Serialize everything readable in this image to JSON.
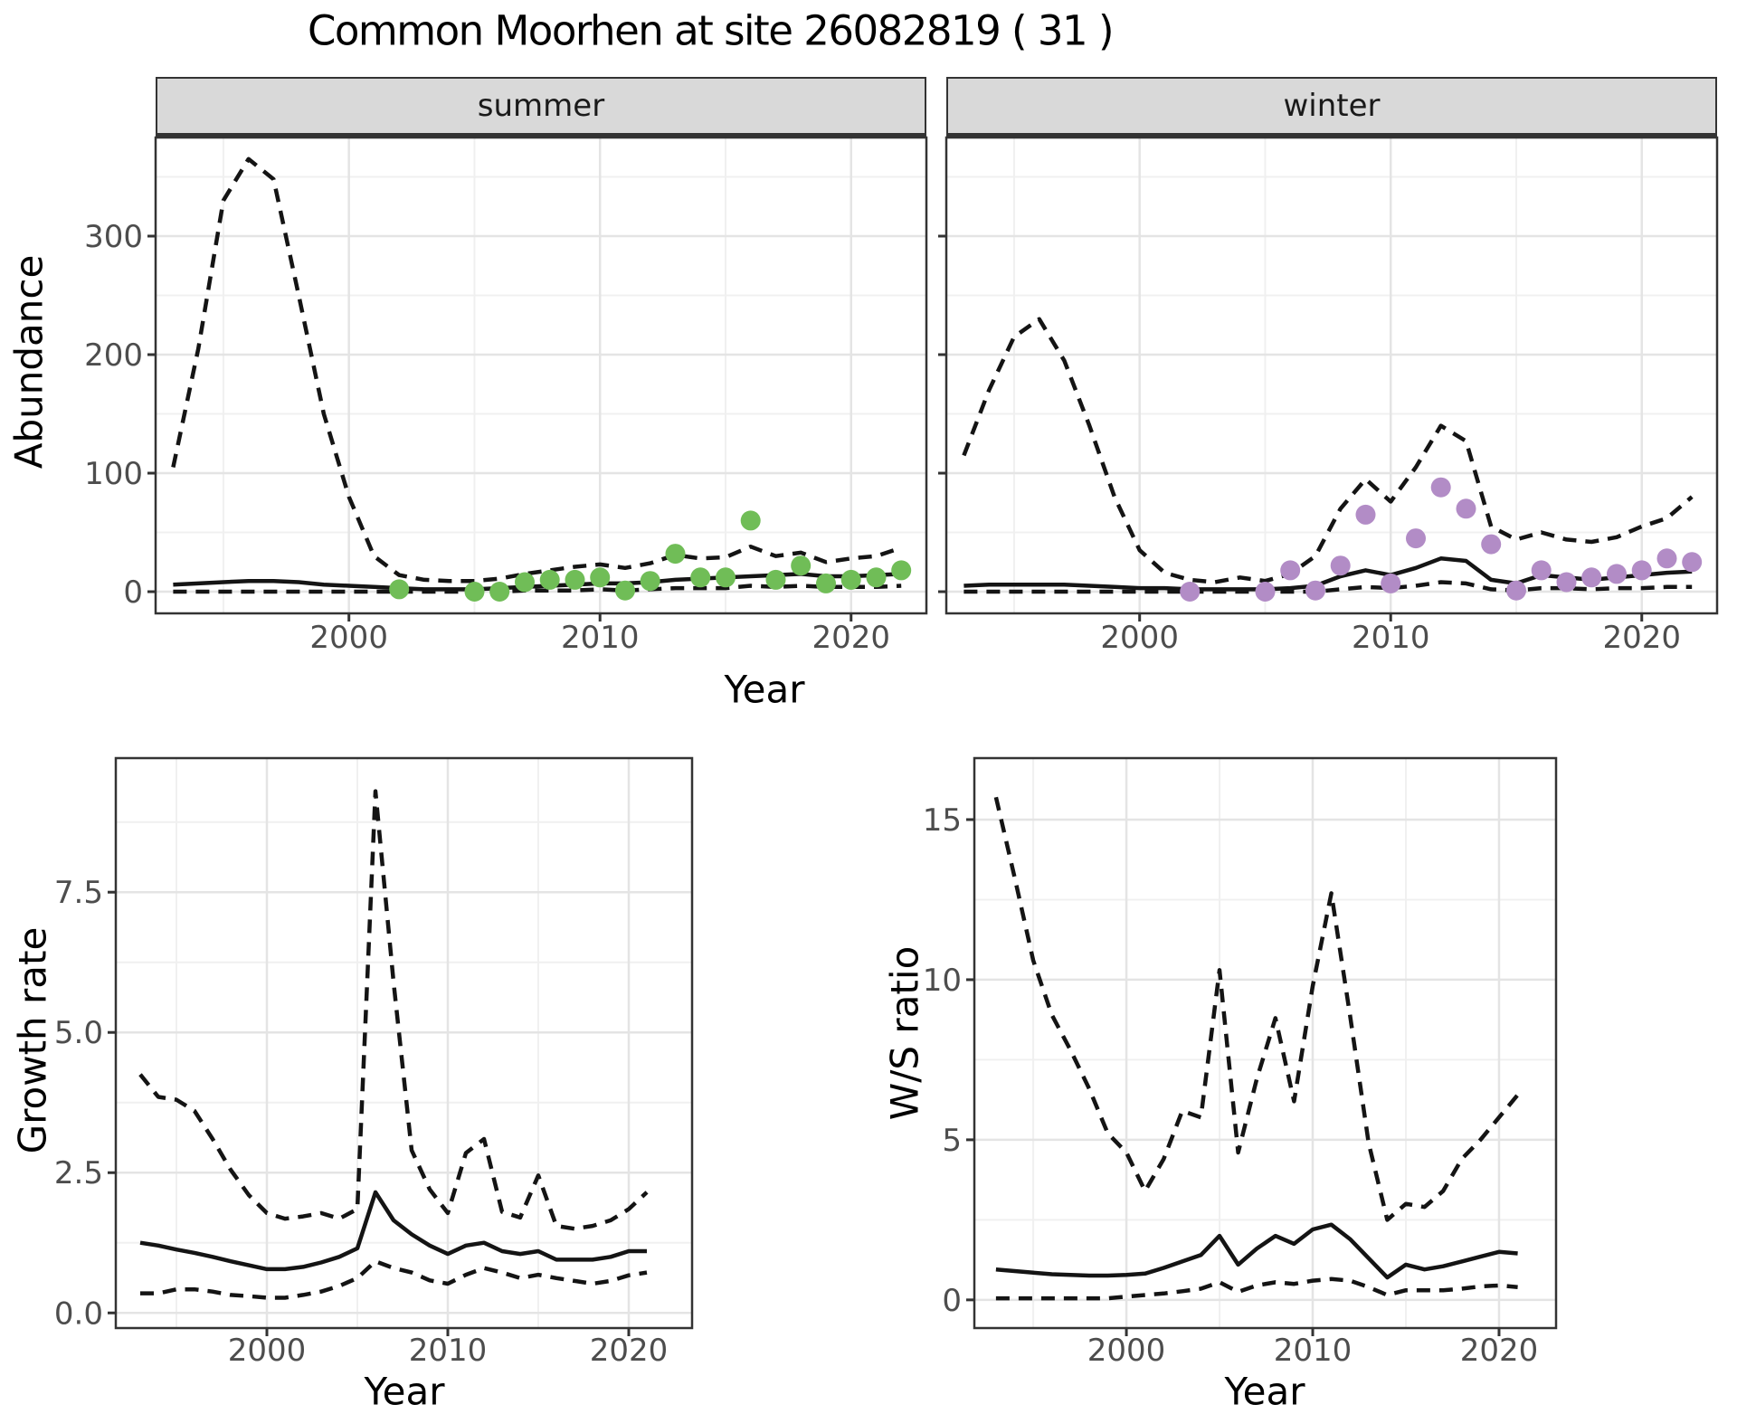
{
  "title": "Common Moorhen at site 26082819 ( 31 )",
  "facet_labels": {
    "summer": "summer",
    "winter": "winter"
  },
  "axis_titles": {
    "abundance": "Abundance",
    "year_top": "Year",
    "growth": "Growth rate",
    "year_growth": "Year",
    "ws": "W/S ratio",
    "year_ws": "Year"
  },
  "colors": {
    "summer_points": "#70bd57",
    "winter_points": "#b28cc6",
    "line": "#141414",
    "grid_major": "#e4e4e4",
    "grid_minor": "#f0f0f0",
    "panel_border": "#333333",
    "strip_fill": "#d9d9d9",
    "tick_text": "#4d4d4d"
  },
  "chart_data": [
    {
      "type": "line",
      "facet": "summer",
      "xlabel": "Year",
      "ylabel": "Abundance",
      "xlim": [
        1992.3,
        2023.0
      ],
      "ylim": [
        -18.3,
        383.2
      ],
      "x_ticks": [
        2000,
        2010,
        2020
      ],
      "x_tick_labels": [
        "2000",
        "2010",
        "2020"
      ],
      "x_minor": [
        1995,
        2005,
        2015
      ],
      "y_ticks": [
        0,
        100,
        200,
        300
      ],
      "y_tick_labels": [
        "0",
        "100",
        "200",
        "300"
      ],
      "y_minor": [
        50,
        150,
        250,
        350
      ],
      "series": [
        {
          "name": "upper_ci",
          "style": "dashed",
          "x": [
            1993,
            1994,
            1995,
            1996,
            1997,
            1998,
            1999,
            2000,
            2001,
            2002,
            2003,
            2004,
            2005,
            2006,
            2007,
            2008,
            2009,
            2010,
            2011,
            2012,
            2013,
            2014,
            2015,
            2016,
            2017,
            2018,
            2019,
            2020,
            2021,
            2022
          ],
          "y": [
            105,
            205,
            330,
            365,
            348,
            250,
            150,
            80,
            30,
            14,
            10,
            9,
            9,
            11,
            15,
            18,
            21,
            23,
            20,
            24,
            31,
            28,
            29,
            38,
            30,
            33,
            25,
            28,
            30,
            37
          ]
        },
        {
          "name": "estimate",
          "style": "solid",
          "x": [
            1993,
            1994,
            1995,
            1996,
            1997,
            1998,
            1999,
            2000,
            2001,
            2002,
            2003,
            2004,
            2005,
            2006,
            2007,
            2008,
            2009,
            2010,
            2011,
            2012,
            2013,
            2014,
            2015,
            2016,
            2017,
            2018,
            2019,
            2020,
            2021,
            2022
          ],
          "y": [
            6,
            7,
            8,
            9,
            9,
            8,
            6,
            5,
            4,
            3,
            2,
            2,
            2,
            3,
            4,
            5,
            6,
            7,
            7,
            8,
            10,
            11,
            12,
            13,
            14,
            15,
            13,
            13,
            14,
            15
          ]
        },
        {
          "name": "lower_ci",
          "style": "dashed",
          "x": [
            1993,
            1994,
            1995,
            1996,
            1997,
            1998,
            1999,
            2000,
            2001,
            2002,
            2003,
            2004,
            2005,
            2006,
            2007,
            2008,
            2009,
            2010,
            2011,
            2012,
            2013,
            2014,
            2015,
            2016,
            2017,
            2018,
            2019,
            2020,
            2021,
            2022
          ],
          "y": [
            0,
            0,
            0,
            0,
            0,
            0,
            0,
            0,
            0,
            0,
            0,
            0,
            0,
            0,
            1,
            1,
            1,
            2,
            1,
            2,
            3,
            3,
            3,
            5,
            4,
            5,
            4,
            4,
            4,
            5
          ]
        }
      ],
      "points": {
        "name": "observed_counts",
        "color_key": "summer_points",
        "x": [
          2002,
          2005,
          2006,
          2007,
          2008,
          2009,
          2010,
          2011,
          2012,
          2013,
          2014,
          2015,
          2016,
          2017,
          2018,
          2019,
          2020,
          2021,
          2022
        ],
        "y": [
          2,
          0,
          0,
          8,
          10,
          10,
          12,
          1,
          9,
          32,
          12,
          12,
          60,
          10,
          22,
          7,
          10,
          12,
          18
        ]
      }
    },
    {
      "type": "line",
      "facet": "winter",
      "xlabel": "Year",
      "ylabel": "Abundance",
      "xlim": [
        1992.3,
        2023.0
      ],
      "ylim": [
        -18.3,
        383.2
      ],
      "x_ticks": [
        2000,
        2010,
        2020
      ],
      "x_tick_labels": [
        "2000",
        "2010",
        "2020"
      ],
      "x_minor": [
        1995,
        2005,
        2015
      ],
      "y_ticks": [
        0,
        100,
        200,
        300
      ],
      "y_tick_labels": [
        "0",
        "100",
        "200",
        "300"
      ],
      "y_minor": [
        50,
        150,
        250,
        350
      ],
      "series": [
        {
          "name": "upper_ci",
          "style": "dashed",
          "x": [
            1993,
            1994,
            1995,
            1996,
            1997,
            1998,
            1999,
            2000,
            2001,
            2002,
            2003,
            2004,
            2005,
            2006,
            2007,
            2008,
            2009,
            2010,
            2011,
            2012,
            2013,
            2014,
            2015,
            2016,
            2017,
            2018,
            2019,
            2020,
            2021,
            2022
          ],
          "y": [
            115,
            170,
            215,
            230,
            195,
            140,
            80,
            35,
            16,
            10,
            8,
            12,
            9,
            15,
            30,
            70,
            95,
            76,
            105,
            140,
            127,
            55,
            44,
            50,
            44,
            42,
            46,
            55,
            62,
            80
          ]
        },
        {
          "name": "estimate",
          "style": "solid",
          "x": [
            1993,
            1994,
            1995,
            1996,
            1997,
            1998,
            1999,
            2000,
            2001,
            2002,
            2003,
            2004,
            2005,
            2006,
            2007,
            2008,
            2009,
            2010,
            2011,
            2012,
            2013,
            2014,
            2015,
            2016,
            2017,
            2018,
            2019,
            2020,
            2021,
            2022
          ],
          "y": [
            5,
            6,
            6,
            6,
            6,
            5,
            4,
            3,
            3,
            2,
            2,
            2,
            2,
            3,
            5,
            13,
            18,
            14,
            20,
            28,
            26,
            10,
            7,
            14,
            12,
            10,
            12,
            14,
            16,
            17
          ]
        },
        {
          "name": "lower_ci",
          "style": "dashed",
          "x": [
            1993,
            1994,
            1995,
            1996,
            1997,
            1998,
            1999,
            2000,
            2001,
            2002,
            2003,
            2004,
            2005,
            2006,
            2007,
            2008,
            2009,
            2010,
            2011,
            2012,
            2013,
            2014,
            2015,
            2016,
            2017,
            2018,
            2019,
            2020,
            2021,
            2022
          ],
          "y": [
            0,
            0,
            0,
            0,
            0,
            0,
            0,
            0,
            0,
            0,
            0,
            0,
            0,
            0,
            0,
            2,
            4,
            3,
            5,
            8,
            7,
            2,
            1,
            3,
            3,
            2,
            3,
            3,
            4,
            4
          ]
        }
      ],
      "points": {
        "name": "observed_counts",
        "color_key": "winter_points",
        "x": [
          2002,
          2005,
          2006,
          2007,
          2008,
          2009,
          2010,
          2011,
          2012,
          2013,
          2014,
          2015,
          2016,
          2017,
          2018,
          2019,
          2020,
          2021,
          2022
        ],
        "y": [
          0,
          0,
          18,
          1,
          22,
          65,
          7,
          45,
          88,
          70,
          40,
          1,
          18,
          8,
          12,
          15,
          18,
          28,
          25
        ]
      }
    },
    {
      "type": "line",
      "facet": "",
      "xlabel": "Year",
      "ylabel": "Growth rate",
      "xlim": [
        1991.65,
        2023.5
      ],
      "ylim": [
        -0.27,
        9.89
      ],
      "x_ticks": [
        2000,
        2010,
        2020
      ],
      "x_tick_labels": [
        "2000",
        "2010",
        "2020"
      ],
      "x_minor": [
        1995,
        2005,
        2015
      ],
      "y_ticks": [
        0.0,
        2.5,
        5.0,
        7.5
      ],
      "y_tick_labels": [
        "0.0",
        "2.5",
        "5.0",
        "7.5"
      ],
      "y_minor": [
        1.25,
        3.75,
        6.25,
        8.75
      ],
      "series": [
        {
          "name": "upper_ci",
          "style": "dashed",
          "x": [
            1993,
            1994,
            1995,
            1996,
            1997,
            1998,
            1999,
            2000,
            2001,
            2002,
            2003,
            2004,
            2005,
            2006,
            2007,
            2008,
            2009,
            2010,
            2011,
            2012,
            2013,
            2014,
            2015,
            2016,
            2017,
            2018,
            2019,
            2020,
            2021
          ],
          "y": [
            4.25,
            3.85,
            3.8,
            3.6,
            3.1,
            2.55,
            2.1,
            1.78,
            1.68,
            1.72,
            1.78,
            1.68,
            1.85,
            9.3,
            5.9,
            2.9,
            2.2,
            1.78,
            2.85,
            3.1,
            1.8,
            1.7,
            2.45,
            1.55,
            1.5,
            1.55,
            1.65,
            1.85,
            2.15
          ]
        },
        {
          "name": "estimate",
          "style": "solid",
          "x": [
            1993,
            1994,
            1995,
            1996,
            1997,
            1998,
            1999,
            2000,
            2001,
            2002,
            2003,
            2004,
            2005,
            2006,
            2007,
            2008,
            2009,
            2010,
            2011,
            2012,
            2013,
            2014,
            2015,
            2016,
            2017,
            2018,
            2019,
            2020,
            2021
          ],
          "y": [
            1.25,
            1.2,
            1.13,
            1.07,
            1.0,
            0.92,
            0.85,
            0.78,
            0.78,
            0.82,
            0.9,
            1.0,
            1.15,
            2.15,
            1.65,
            1.4,
            1.2,
            1.05,
            1.2,
            1.25,
            1.1,
            1.05,
            1.1,
            0.95,
            0.95,
            0.95,
            1.0,
            1.1,
            1.1
          ]
        },
        {
          "name": "lower_ci",
          "style": "dashed",
          "x": [
            1993,
            1994,
            1995,
            1996,
            1997,
            1998,
            1999,
            2000,
            2001,
            2002,
            2003,
            2004,
            2005,
            2006,
            2007,
            2008,
            2009,
            2010,
            2011,
            2012,
            2013,
            2014,
            2015,
            2016,
            2017,
            2018,
            2019,
            2020,
            2021
          ],
          "y": [
            0.35,
            0.35,
            0.42,
            0.42,
            0.38,
            0.32,
            0.3,
            0.27,
            0.27,
            0.32,
            0.38,
            0.48,
            0.62,
            0.92,
            0.8,
            0.72,
            0.58,
            0.52,
            0.68,
            0.8,
            0.72,
            0.62,
            0.68,
            0.62,
            0.57,
            0.52,
            0.57,
            0.67,
            0.72
          ]
        }
      ]
    },
    {
      "type": "line",
      "facet": "",
      "xlabel": "Year",
      "ylabel": "W/S ratio",
      "xlim": [
        1991.84,
        2023.06
      ],
      "ylim": [
        -0.88,
        16.92
      ],
      "x_ticks": [
        2000,
        2010,
        2020
      ],
      "x_tick_labels": [
        "2000",
        "2010",
        "2020"
      ],
      "x_minor": [
        1995,
        2005,
        2015
      ],
      "y_ticks": [
        0,
        5,
        10,
        15
      ],
      "y_tick_labels": [
        "0",
        "5",
        "10",
        "15"
      ],
      "y_minor": [
        2.5,
        7.5,
        12.5
      ],
      "series": [
        {
          "name": "upper_ci",
          "style": "dashed",
          "x": [
            1993,
            1994,
            1995,
            1996,
            1997,
            1998,
            1999,
            2000,
            2001,
            2002,
            2003,
            2004,
            2005,
            2006,
            2007,
            2008,
            2009,
            2010,
            2011,
            2012,
            2013,
            2014,
            2015,
            2016,
            2017,
            2018,
            2019,
            2020,
            2021
          ],
          "y": [
            15.7,
            13.2,
            10.6,
            8.9,
            7.8,
            6.6,
            5.2,
            4.6,
            3.4,
            4.4,
            5.9,
            5.7,
            10.3,
            4.6,
            6.9,
            8.8,
            6.2,
            9.8,
            12.7,
            8.9,
            4.9,
            2.5,
            3.0,
            2.9,
            3.4,
            4.4,
            5.0,
            5.7,
            6.4
          ]
        },
        {
          "name": "estimate",
          "style": "solid",
          "x": [
            1993,
            1994,
            1995,
            1996,
            1997,
            1998,
            1999,
            2000,
            2001,
            2002,
            2003,
            2004,
            2005,
            2006,
            2007,
            2008,
            2009,
            2010,
            2011,
            2012,
            2013,
            2014,
            2015,
            2016,
            2017,
            2018,
            2019,
            2020,
            2021
          ],
          "y": [
            0.95,
            0.9,
            0.85,
            0.8,
            0.78,
            0.76,
            0.76,
            0.78,
            0.82,
            1.0,
            1.2,
            1.4,
            2.0,
            1.1,
            1.6,
            2.0,
            1.75,
            2.2,
            2.35,
            1.9,
            1.3,
            0.7,
            1.1,
            0.95,
            1.05,
            1.2,
            1.35,
            1.5,
            1.45
          ]
        },
        {
          "name": "lower_ci",
          "style": "dashed",
          "x": [
            1993,
            1994,
            1995,
            1996,
            1997,
            1998,
            1999,
            2000,
            2001,
            2002,
            2003,
            2004,
            2005,
            2006,
            2007,
            2008,
            2009,
            2010,
            2011,
            2012,
            2013,
            2014,
            2015,
            2016,
            2017,
            2018,
            2019,
            2020,
            2021
          ],
          "y": [
            0.05,
            0.05,
            0.05,
            0.05,
            0.05,
            0.05,
            0.05,
            0.1,
            0.15,
            0.2,
            0.27,
            0.35,
            0.55,
            0.25,
            0.45,
            0.55,
            0.5,
            0.6,
            0.65,
            0.6,
            0.4,
            0.15,
            0.3,
            0.3,
            0.3,
            0.35,
            0.42,
            0.45,
            0.4
          ]
        }
      ]
    }
  ]
}
